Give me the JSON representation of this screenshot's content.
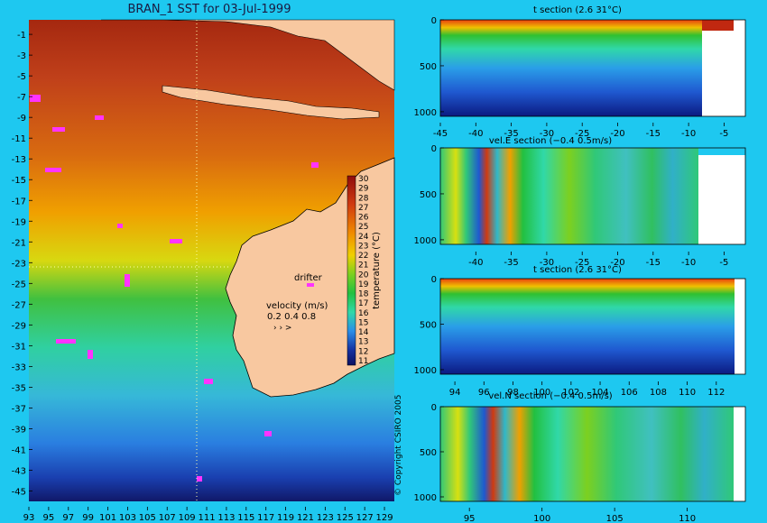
{
  "colors": {
    "background": "#1ec8f0",
    "land": "#f8c8a0",
    "magenta_drifter": "#ff33ff",
    "scale": [
      "#0b1060",
      "#1530a0",
      "#1f58d0",
      "#2a8ee8",
      "#33c0d8",
      "#30d8a8",
      "#22c040",
      "#7cd020",
      "#d8e010",
      "#f0c000",
      "#f08a00",
      "#e05800",
      "#d03a10",
      "#b51e10",
      "#8f0c0c"
    ]
  },
  "chart_data": [
    {
      "type": "heatmap",
      "title": "BRAN_1 SST for 03-Jul-1999",
      "x_ticks": [
        "93",
        "95",
        "97",
        "99",
        "101",
        "103",
        "105",
        "107",
        "109",
        "111",
        "113",
        "115",
        "117",
        "119",
        "121",
        "123",
        "125",
        "127",
        "129"
      ],
      "y_ticks": [
        "-1",
        "-3",
        "-5",
        "-7",
        "-9",
        "-11",
        "-13",
        "-15",
        "-17",
        "-19",
        "-21",
        "-23",
        "-25",
        "-27",
        "-29",
        "-31",
        "-33",
        "-35",
        "-37",
        "-39",
        "-41",
        "-43",
        "-45"
      ],
      "xlim": [
        93,
        130
      ],
      "ylim": [
        -45,
        0
      ],
      "colorbar": {
        "label": "temperature (°C)",
        "ticks": [
          "30",
          "29",
          "28",
          "27",
          "26",
          "25",
          "24",
          "23",
          "22",
          "21",
          "20",
          "19",
          "18",
          "17",
          "16",
          "15",
          "14",
          "13",
          "12",
          "11"
        ]
      },
      "annotations": {
        "drifter_label": "drifter",
        "velocity_title": "velocity (m/s)",
        "velocity_scale": "0.2 0.4 0.8"
      },
      "copyright": "© Copyright CSIRO 2005"
    },
    {
      "type": "heatmap",
      "title": "t section (2.6      31°C)",
      "x_ticks": [
        "-45",
        "-40",
        "-35",
        "-30",
        "-25",
        "-20",
        "-15",
        "-10",
        "-5"
      ],
      "y_ticks": [
        "0",
        "500",
        "1000"
      ],
      "xlim": [
        -45,
        -2
      ],
      "ylim": [
        1050,
        0
      ]
    },
    {
      "type": "heatmap",
      "title": "vel.E section (−0.4      0.5m/s)",
      "x_ticks": [
        "-40",
        "-35",
        "-30",
        "-25",
        "-20",
        "-15",
        "-10",
        "-5"
      ],
      "y_ticks": [
        "0",
        "500",
        "1000"
      ],
      "xlim": [
        -45,
        -2
      ],
      "ylim": [
        1050,
        0
      ]
    },
    {
      "type": "heatmap",
      "title": "t section (2.6      31°C)",
      "x_ticks": [
        "94",
        "96",
        "98",
        "100",
        "102",
        "104",
        "106",
        "108",
        "110",
        "112"
      ],
      "y_ticks": [
        "0",
        "500",
        "1000"
      ],
      "xlim": [
        93,
        114
      ],
      "ylim": [
        1050,
        0
      ]
    },
    {
      "type": "heatmap",
      "title": "vel.N section (−0.4      0.5m/s)",
      "x_ticks": [
        "95",
        "100",
        "105",
        "110"
      ],
      "y_ticks": [
        "0",
        "500",
        "1000"
      ],
      "xlim": [
        93,
        114
      ],
      "ylim": [
        1050,
        0
      ]
    }
  ]
}
